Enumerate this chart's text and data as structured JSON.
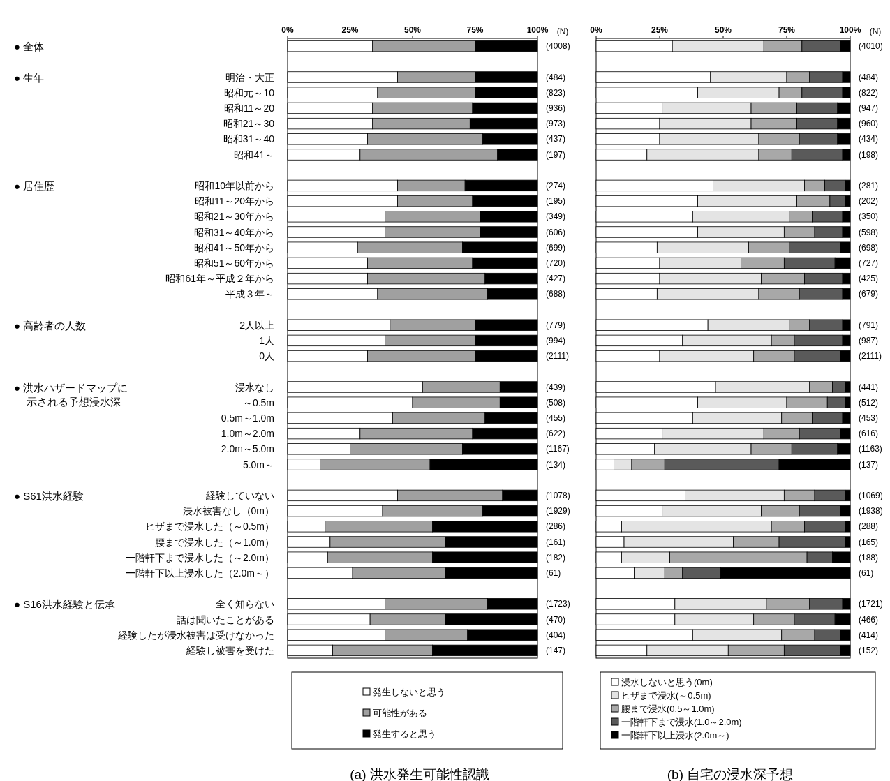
{
  "chart_data": [
    {
      "type": "bar",
      "orientation": "horizontal",
      "stacked": true,
      "title": "(a) 洪水発生可能性認識",
      "y2label": "(N)",
      "legend": "bottom",
      "xlim": [
        0,
        100
      ],
      "xticks": [
        {
          "value": 0,
          "label": "0%"
        },
        {
          "value": 25,
          "label": "25%"
        },
        {
          "value": 50,
          "label": "50%"
        },
        {
          "value": 75,
          "label": "75%"
        },
        {
          "value": 100,
          "label": "100%"
        }
      ],
      "categories": [
        null,
        null,
        "明治・大正",
        "昭和元～10",
        "昭和11～20",
        "昭和21～30",
        "昭和31～40",
        "昭和41～",
        null,
        "昭和10年以前から",
        "昭和11～20年から",
        "昭和21～30年から",
        "昭和31～40年から",
        "昭和41～50年から",
        "昭和51～60年から",
        "昭和61年～平成２年から",
        "平成３年～",
        null,
        "2人以上",
        "1人",
        "0人",
        null,
        "浸水なし",
        "～0.5m",
        "0.5m～1.0m",
        "1.0m～2.0m",
        "2.0m～5.0m",
        "5.0m～",
        null,
        "経験していない",
        "浸水被害なし（0m）",
        "ヒザまで浸水した（～0.5m）",
        "腰まで浸水した（～1.0m）",
        "一階軒下まで浸水した（～2.0m）",
        "一階軒下以上浸水した（2.0m～）",
        null,
        "全く知らない",
        "話は聞いたことがある",
        "経験したが浸水被害は受けなかった",
        "経験し被害を受けた"
      ],
      "annotations": [
        "● 全体",
        "● 生年",
        "● 居住歴",
        "● 高齢者の人数",
        "● 洪水ハザードマップに示される予想浸水深",
        "● S61洪水経験",
        "● S16洪水経験と伝承"
      ],
      "series": [
        {
          "name": "発生しないと思う",
          "color": "#ffffff",
          "values": [
            34,
            null,
            44,
            36,
            34,
            34,
            32,
            29,
            null,
            44,
            44,
            39,
            39,
            28,
            32,
            32,
            36,
            null,
            41,
            39,
            32,
            null,
            54,
            50,
            42,
            29,
            25,
            13,
            null,
            44,
            38,
            15,
            17,
            16,
            26,
            null,
            39,
            33,
            39,
            18
          ]
        },
        {
          "name": "可能性がある",
          "color": "#a0a0a0",
          "values": [
            41,
            null,
            31,
            39,
            40,
            39,
            46,
            55,
            null,
            27,
            30,
            38,
            38,
            42,
            42,
            47,
            44,
            null,
            34,
            36,
            43,
            null,
            31,
            35,
            37,
            45,
            45,
            44,
            null,
            42,
            40,
            43,
            46,
            42,
            37,
            null,
            41,
            30,
            33,
            40
          ]
        },
        {
          "name": "発生すると思う",
          "color": "#000000",
          "values": [
            25,
            null,
            25,
            25,
            26,
            27,
            22,
            16,
            null,
            29,
            26,
            23,
            23,
            30,
            26,
            21,
            20,
            null,
            25,
            25,
            25,
            null,
            15,
            15,
            21,
            26,
            30,
            43,
            null,
            14,
            22,
            42,
            37,
            42,
            37,
            null,
            20,
            37,
            28,
            42
          ]
        }
      ],
      "y2_categories": [
        "(4008)",
        null,
        "(484)",
        "(823)",
        "(936)",
        "(973)",
        "(437)",
        "(197)",
        null,
        "(274)",
        "(195)",
        "(349)",
        "(606)",
        "(699)",
        "(720)",
        "(427)",
        "(688)",
        null,
        "(779)",
        "(994)",
        "(2111)",
        null,
        "(439)",
        "(508)",
        "(455)",
        "(622)",
        "(1167)",
        "(134)",
        null,
        "(1078)",
        "(1929)",
        "(286)",
        "(161)",
        "(182)",
        "(61)",
        null,
        "(1723)",
        "(470)",
        "(404)",
        "(147)"
      ]
    },
    {
      "type": "bar",
      "orientation": "horizontal",
      "stacked": true,
      "title": "(b) 自宅の浸水深予想",
      "y2label": "(N)",
      "legend": "bottom",
      "tick_labels": "x",
      "xlim": [
        0,
        100
      ],
      "xticks": [
        {
          "value": 0,
          "label": "0%"
        },
        {
          "value": 25,
          "label": "25%"
        },
        {
          "value": 50,
          "label": "50%"
        },
        {
          "value": 75,
          "label": "75%"
        },
        {
          "value": 100,
          "label": "100%"
        }
      ],
      "series": [
        {
          "name": "浸水しないと思う(0m)",
          "color": "#ffffff",
          "values": [
            30,
            null,
            45,
            40,
            26,
            25,
            25,
            20,
            null,
            46,
            40,
            38,
            40,
            24,
            25,
            25,
            24,
            null,
            44,
            34,
            25,
            null,
            47,
            40,
            38,
            26,
            23,
            7,
            null,
            35,
            26,
            10,
            11,
            10,
            15,
            null,
            31,
            31,
            38,
            20
          ]
        },
        {
          "name": "ヒザまで浸水(～0.5m)",
          "color": "#e4e4e4",
          "values": [
            36,
            null,
            30,
            32,
            35,
            36,
            39,
            44,
            null,
            36,
            39,
            38,
            34,
            36,
            32,
            40,
            40,
            null,
            32,
            35,
            37,
            null,
            37,
            35,
            35,
            40,
            38,
            7,
            null,
            39,
            39,
            59,
            43,
            19,
            12,
            null,
            36,
            31,
            35,
            32
          ]
        },
        {
          "name": "腰まで浸水(0.5～1.0m)",
          "color": "#a8a8a8",
          "values": [
            15,
            null,
            9,
            9,
            18,
            18,
            16,
            13,
            null,
            8,
            13,
            9,
            12,
            16,
            17,
            17,
            16,
            null,
            8,
            9,
            16,
            null,
            9,
            16,
            12,
            14,
            16,
            13,
            null,
            12,
            15,
            13,
            18,
            54,
            7,
            null,
            17,
            16,
            13,
            22
          ]
        },
        {
          "name": "一階軒下まで浸水(1.0～2.0m)",
          "color": "#5a5a5a",
          "values": [
            15,
            null,
            13,
            16,
            16,
            16,
            15,
            20,
            null,
            8,
            6,
            12,
            11,
            20,
            20,
            15,
            17,
            null,
            13,
            19,
            18,
            null,
            5,
            7,
            12,
            16,
            18,
            45,
            null,
            12,
            16,
            16,
            26,
            10,
            15,
            null,
            13,
            16,
            10,
            22
          ]
        },
        {
          "name": "一階軒下以上浸水(2.0m～)",
          "color": "#000000",
          "values": [
            4,
            null,
            3,
            3,
            5,
            5,
            5,
            3,
            null,
            2,
            2,
            3,
            3,
            4,
            6,
            3,
            3,
            null,
            3,
            3,
            4,
            null,
            2,
            2,
            3,
            4,
            5,
            28,
            null,
            2,
            4,
            2,
            2,
            7,
            51,
            null,
            3,
            6,
            4,
            4
          ]
        }
      ],
      "y2_categories": [
        "(4010)",
        null,
        "(484)",
        "(822)",
        "(947)",
        "(960)",
        "(434)",
        "(198)",
        null,
        "(281)",
        "(202)",
        "(350)",
        "(598)",
        "(698)",
        "(727)",
        "(425)",
        "(679)",
        null,
        "(791)",
        "(987)",
        "(2111)",
        null,
        "(441)",
        "(512)",
        "(453)",
        "(616)",
        "(1163)",
        "(137)",
        null,
        "(1069)",
        "(1938)",
        "(288)",
        "(165)",
        "(188)",
        "(61)",
        null,
        "(1721)",
        "(466)",
        "(414)",
        "(152)"
      ]
    }
  ]
}
